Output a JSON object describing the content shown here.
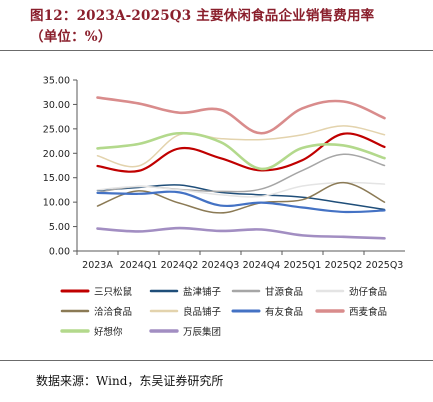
{
  "header": {
    "title_line1": "图12：2023A-2025Q3  主要休闲食品企业销售费用率",
    "title_line2": "（单位：%）"
  },
  "footer": {
    "source": "数据来源：Wind，东吴证券研究所"
  },
  "chart_data": {
    "type": "line",
    "title": "图12：2023A-2025Q3  主要休闲食品企业销售费用率",
    "subtitle": "（单位：%）",
    "ylim": [
      0,
      35
    ],
    "yticks": [
      "0.00",
      "5.00",
      "10.00",
      "15.00",
      "20.00",
      "25.00",
      "30.00",
      "35.00"
    ],
    "categories": [
      "2023A",
      "2024Q1",
      "2024Q2",
      "2024Q3",
      "2024Q4",
      "2025Q1",
      "2025Q2",
      "2025Q3"
    ],
    "grid": false,
    "legend": "bottom",
    "series": [
      {
        "name": "三只松鼠",
        "color": "#c00000",
        "width": 2.2,
        "values": [
          17.4,
          16.4,
          21.0,
          19.0,
          16.5,
          18.6,
          24.0,
          21.3
        ]
      },
      {
        "name": "盐津铺子",
        "color": "#1f4e79",
        "width": 1.5,
        "values": [
          12.4,
          13.0,
          13.5,
          12.0,
          11.5,
          11.0,
          9.8,
          8.5
        ]
      },
      {
        "name": "甘源食品",
        "color": "#a6a6a6",
        "width": 1.5,
        "values": [
          12.0,
          13.2,
          12.6,
          12.2,
          12.7,
          16.5,
          19.8,
          17.5
        ]
      },
      {
        "name": "劲仔食品",
        "color": "#e4e4e4",
        "width": 1.5,
        "values": [
          12.5,
          13.2,
          12.5,
          11.5,
          11.2,
          13.3,
          14.0,
          13.7
        ]
      },
      {
        "name": "洽洽食品",
        "color": "#8b7a55",
        "width": 1.5,
        "values": [
          9.2,
          12.3,
          9.8,
          7.8,
          9.9,
          10.5,
          14.0,
          10.0
        ]
      },
      {
        "name": "良品铺子",
        "color": "#e3d3ad",
        "width": 1.5,
        "values": [
          19.5,
          17.4,
          23.8,
          23.0,
          22.8,
          23.8,
          25.6,
          23.8
        ]
      },
      {
        "name": "有友食品",
        "color": "#4472c4",
        "width": 2.2,
        "values": [
          11.9,
          11.7,
          12.0,
          9.3,
          9.9,
          8.9,
          8.0,
          8.3
        ]
      },
      {
        "name": "西麦食品",
        "color": "#d98c8c",
        "width": 2.6,
        "values": [
          31.4,
          30.2,
          28.3,
          28.9,
          24.1,
          29.2,
          30.6,
          27.2
        ]
      },
      {
        "name": "好想你",
        "color": "#b3d98c",
        "width": 2.6,
        "values": [
          21.0,
          21.9,
          24.1,
          22.3,
          16.8,
          21.1,
          21.6,
          19.0
        ]
      },
      {
        "name": "万辰集团",
        "color": "#a28ec2",
        "width": 2.6,
        "values": [
          4.6,
          4.0,
          4.7,
          4.1,
          4.4,
          3.2,
          2.9,
          2.6
        ]
      }
    ]
  }
}
